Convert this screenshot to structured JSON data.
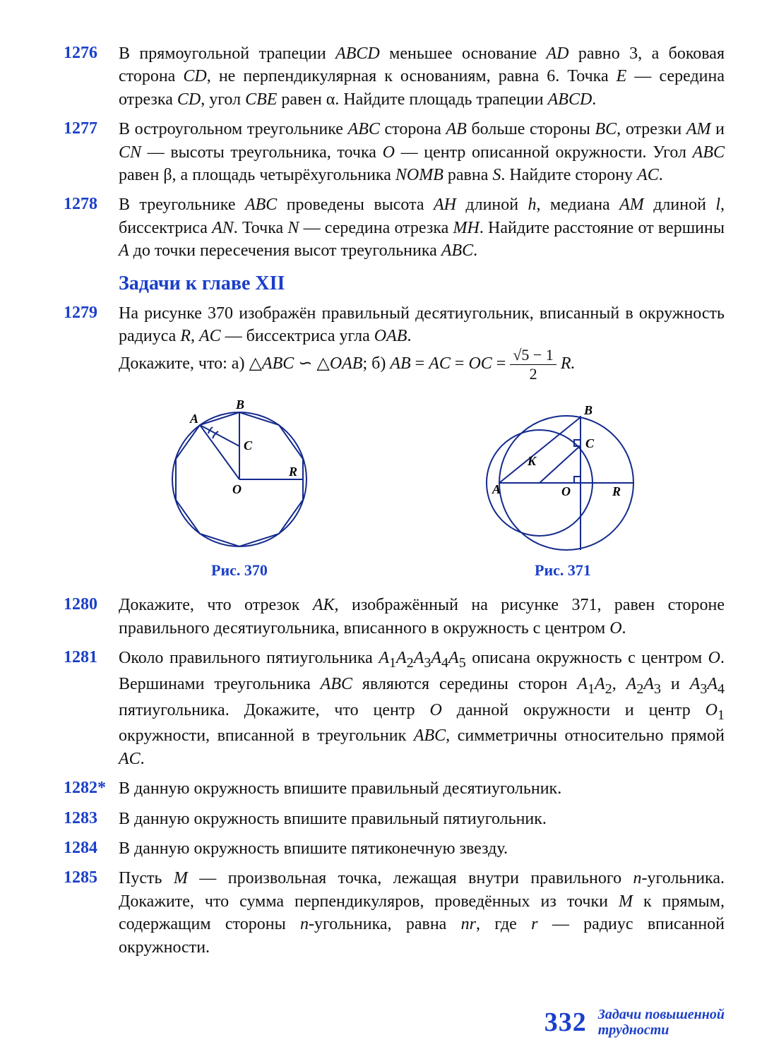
{
  "colors": {
    "accent": "#1a3fc9",
    "text": "#111111",
    "stroke": "#142a8c",
    "bg": "#ffffff"
  },
  "problems_top": [
    {
      "num": "1276",
      "html": "В прямоугольной трапеции <span class='mi'>ABCD</span> меньшее основание <span class='mi'>AD</span> равно 3, а боковая сторона <span class='mi'>CD</span>, не перпендикулярная к основаниям, равна 6. Точка <span class='mi'>E</span> — середина отрезка <span class='mi'>CD</span>, угол <span class='mi'>CBE</span> равен α. Найдите площадь трапеции <span class='mi'>ABCD</span>."
    },
    {
      "num": "1277",
      "html": "В остроугольном треугольнике <span class='mi'>ABC</span> сторона <span class='mi'>AB</span> больше стороны <span class='mi'>BC</span>, отрезки <span class='mi'>AM</span> и <span class='mi'>CN</span> — высоты треугольника, точка <span class='mi'>O</span> — центр описанной окружности. Угол <span class='mi'>ABC</span> равен β, а площадь четырёхугольника <span class='mi'>NOMB</span> равна <span class='mi'>S</span>. Найдите сторону <span class='mi'>AC</span>."
    },
    {
      "num": "1278",
      "html": "В треугольнике <span class='mi'>ABC</span> проведены высота <span class='mi'>AH</span> длиной <span class='mi'>h</span>, медиана <span class='mi'>AM</span> длиной <span class='mi'>l</span>, биссектриса <span class='mi'>AN</span>. Точка <span class='mi'>N</span> — середина отрезка <span class='mi'>MH</span>. Найдите расстояние от вершины <span class='mi'>A</span> до точки пересечения высот треугольника <span class='mi'>ABC</span>."
    }
  ],
  "section_title": "Задачи к главе XII",
  "problem_1279": {
    "num": "1279",
    "intro_html": "На рисунке 370 изображён правильный десятиугольник, вписанный в окружность радиуса <span class='mi'>R</span>, <span class='mi'>AC</span> — биссектриса угла <span class='mi'>OAB</span>.",
    "prove_prefix": "Докажите, что: а)  △<span class='mi'>ABC</span> ∽ △<span class='mi'>OAB</span>;  б)   <span class='mi'>AB</span> = <span class='mi'>AC</span> = <span class='mi'>OC</span> = ",
    "frac_top": "√5 − 1",
    "frac_bot": "2",
    "suffix": " R."
  },
  "figures": {
    "left": {
      "caption": "Рис. 370",
      "labels": {
        "A": "A",
        "B": "B",
        "C": "C",
        "O": "O",
        "R": "R"
      },
      "stroke": "#142a8c"
    },
    "right": {
      "caption": "Рис. 371",
      "labels": {
        "A": "A",
        "B": "B",
        "C": "C",
        "K": "K",
        "O": "O",
        "R": "R"
      },
      "stroke": "#142a8c"
    }
  },
  "problems_bottom": [
    {
      "num": "1280",
      "html": "Докажите, что отрезок <span class='mi'>AK</span>, изображённый на рисунке 371, равен стороне правильного десятиугольника, вписанного в окружность с центром <span class='mi'>O</span>."
    },
    {
      "num": "1281",
      "html": "Около правильного пятиугольника <span class='mi'>A</span><sub>1</sub><span class='mi'>A</span><sub>2</sub><span class='mi'>A</span><sub>3</sub><span class='mi'>A</span><sub>4</sub><span class='mi'>A</span><sub>5</sub> описана окружность с центром <span class='mi'>O</span>. Вершинами треугольника <span class='mi'>ABC</span> являются середины сторон <span class='mi'>A</span><sub>1</sub><span class='mi'>A</span><sub>2</sub>, <span class='mi'>A</span><sub>2</sub><span class='mi'>A</span><sub>3</sub> и <span class='mi'>A</span><sub>3</sub><span class='mi'>A</span><sub>4</sub> пятиугольника. Докажите, что центр <span class='mi'>O</span> данной окружности и центр <span class='mi'>O</span><sub>1</sub> окружности, вписанной в треугольник <span class='mi'>ABC</span>, симметричны относительно прямой <span class='mi'>AC</span>."
    },
    {
      "num": "1282*",
      "html": "В данную окружность впишите правильный десятиугольник."
    },
    {
      "num": "1283",
      "html": "В данную окружность впишите правильный пятиугольник."
    },
    {
      "num": "1284",
      "html": "В данную окружность впишите пятиконечную звезду."
    },
    {
      "num": "1285",
      "html": "Пусть <span class='mi'>M</span> — произвольная точка, лежащая внутри правильного <span class='mi'>n</span>-угольника. Докажите, что сумма перпендикуляров, проведённых из точки <span class='mi'>M</span> к прямым, содержащим стороны <span class='mi'>n</span>-угольника, равна <span class='mi'>nr</span>, где <span class='mi'>r</span> — радиус вписанной окружности."
    }
  ],
  "footer": {
    "page": "332",
    "note_l1": "Задачи повышенной",
    "note_l2": "трудности"
  }
}
